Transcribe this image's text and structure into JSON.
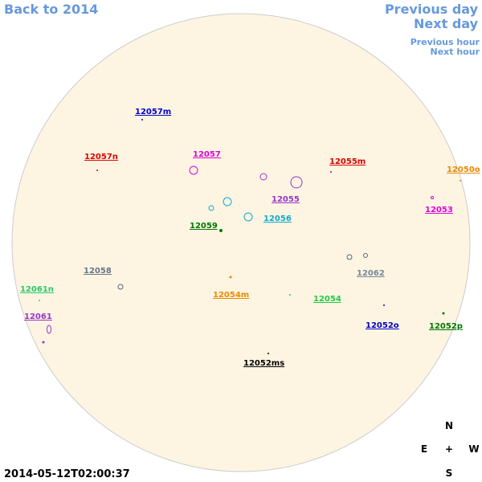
{
  "nav": {
    "back": "Back to 2014",
    "previous_day": "Previous day",
    "next_day": "Next day",
    "previous_hour": "Previous hour",
    "next_hour": "Next hour"
  },
  "timestamp": "2014-05-12T02:00:37",
  "compass": {
    "north": "N",
    "east": "E",
    "center": "+",
    "west": "W",
    "south": "S"
  },
  "regions": [
    {
      "label": "12057m",
      "color": "#0000cc"
    },
    {
      "label": "12057n",
      "color": "#dd0000"
    },
    {
      "label": "12057",
      "color": "#dd00dd"
    },
    {
      "label": "12055m",
      "color": "#dd0000"
    },
    {
      "label": "12050o",
      "color": "#ee8800"
    },
    {
      "label": "12055",
      "color": "#9933cc"
    },
    {
      "label": "12056",
      "color": "#11aacc"
    },
    {
      "label": "12053",
      "color": "#dd00dd"
    },
    {
      "label": "12059",
      "color": "#007700"
    },
    {
      "label": "12058",
      "color": "#667788"
    },
    {
      "label": "12062",
      "color": "#778899"
    },
    {
      "label": "12061n",
      "color": "#22cc66"
    },
    {
      "label": "12054m",
      "color": "#ee8800"
    },
    {
      "label": "12054",
      "color": "#22cc44"
    },
    {
      "label": "12061",
      "color": "#9933cc"
    },
    {
      "label": "12052o",
      "color": "#0000cc"
    },
    {
      "label": "12052p",
      "color": "#007700"
    },
    {
      "label": "12052ms",
      "color": "#000000"
    }
  ]
}
